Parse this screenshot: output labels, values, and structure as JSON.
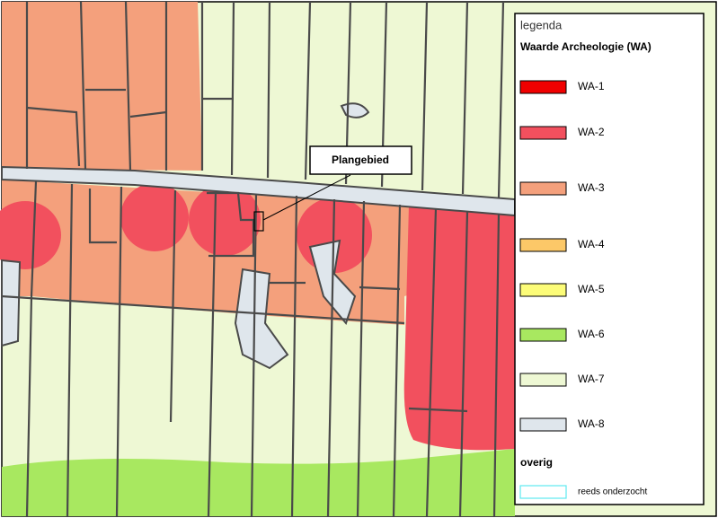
{
  "legend": {
    "title": "legenda",
    "heading": "Waarde Archeologie (WA)",
    "items": [
      {
        "label": "WA-1",
        "color": "#f00000"
      },
      {
        "label": "WA-2",
        "color": "#f2505e"
      },
      {
        "label": "WA-3",
        "color": "#f4a07c"
      },
      {
        "label": "WA-4",
        "color": "#fcc868"
      },
      {
        "label": "WA-5",
        "color": "#fcfc78"
      },
      {
        "label": "WA-6",
        "color": "#a8e860"
      },
      {
        "label": "WA-7",
        "color": "#eef8d4"
      },
      {
        "label": "WA-8",
        "color": "#dfe6ec"
      }
    ],
    "other_heading": "overig",
    "other_items": [
      {
        "label": "reeds onderzocht",
        "color": "#5ee8f0"
      }
    ]
  },
  "map": {
    "callout": "Plangebied"
  }
}
